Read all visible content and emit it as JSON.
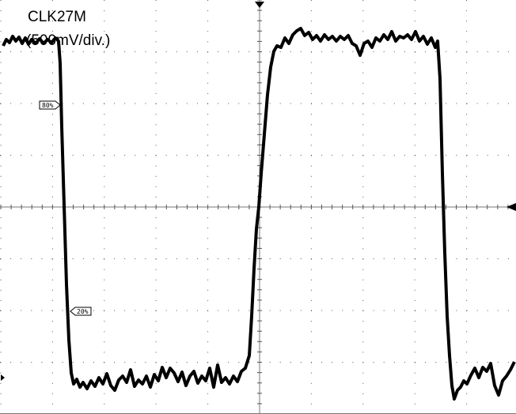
{
  "trace": {
    "name": "CLK27M",
    "scale": "(500mV/div.)"
  },
  "markers": {
    "upper": "80%",
    "lower": "20%"
  }
}
